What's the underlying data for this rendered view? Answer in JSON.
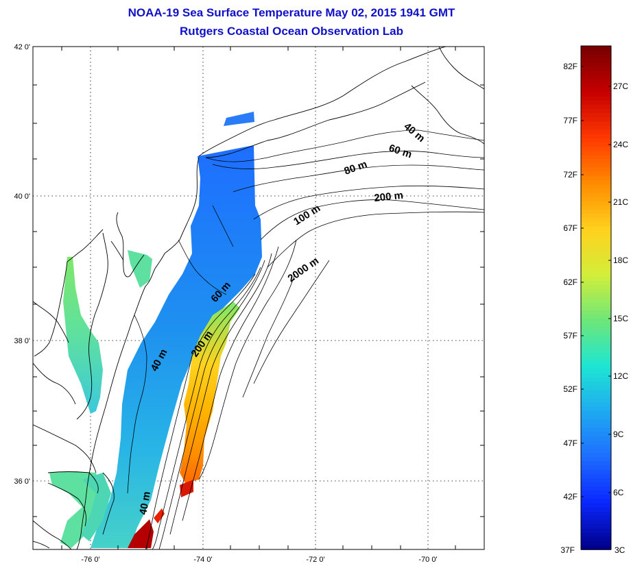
{
  "title": "NOAA-19 Sea Surface Temperature May 02, 2015 1941 GMT",
  "subtitle": "Rutgers Coastal Ocean Observation Lab",
  "axes": {
    "lat_labels": [
      "42 0'",
      "40 0'",
      "38 0'",
      "36 0'"
    ],
    "lon_labels": [
      "-76 0'",
      "-74 0'",
      "-72 0'",
      "-70 0'"
    ]
  },
  "contours": {
    "north": [
      "40 m",
      "60 m",
      "80 m",
      "100 m",
      "200 m",
      "2000 m"
    ],
    "south": [
      "60 m",
      "200 m",
      "40 m",
      "40 m"
    ]
  },
  "colorbar": {
    "fahrenheit": [
      "82F",
      "77F",
      "72F",
      "67F",
      "62F",
      "57F",
      "52F",
      "47F",
      "42F",
      "37F"
    ],
    "celsius": [
      "27C",
      "24C",
      "21C",
      "18C",
      "15C",
      "12C",
      "9C",
      "6C",
      "3C"
    ],
    "colors": [
      "#7a0000",
      "#c80000",
      "#ff3a00",
      "#ff8c00",
      "#ffd21e",
      "#d2ee3a",
      "#6ee678",
      "#1ee6d2",
      "#1eaaf0",
      "#1e6eff",
      "#0a28ff",
      "#00008c"
    ]
  }
}
